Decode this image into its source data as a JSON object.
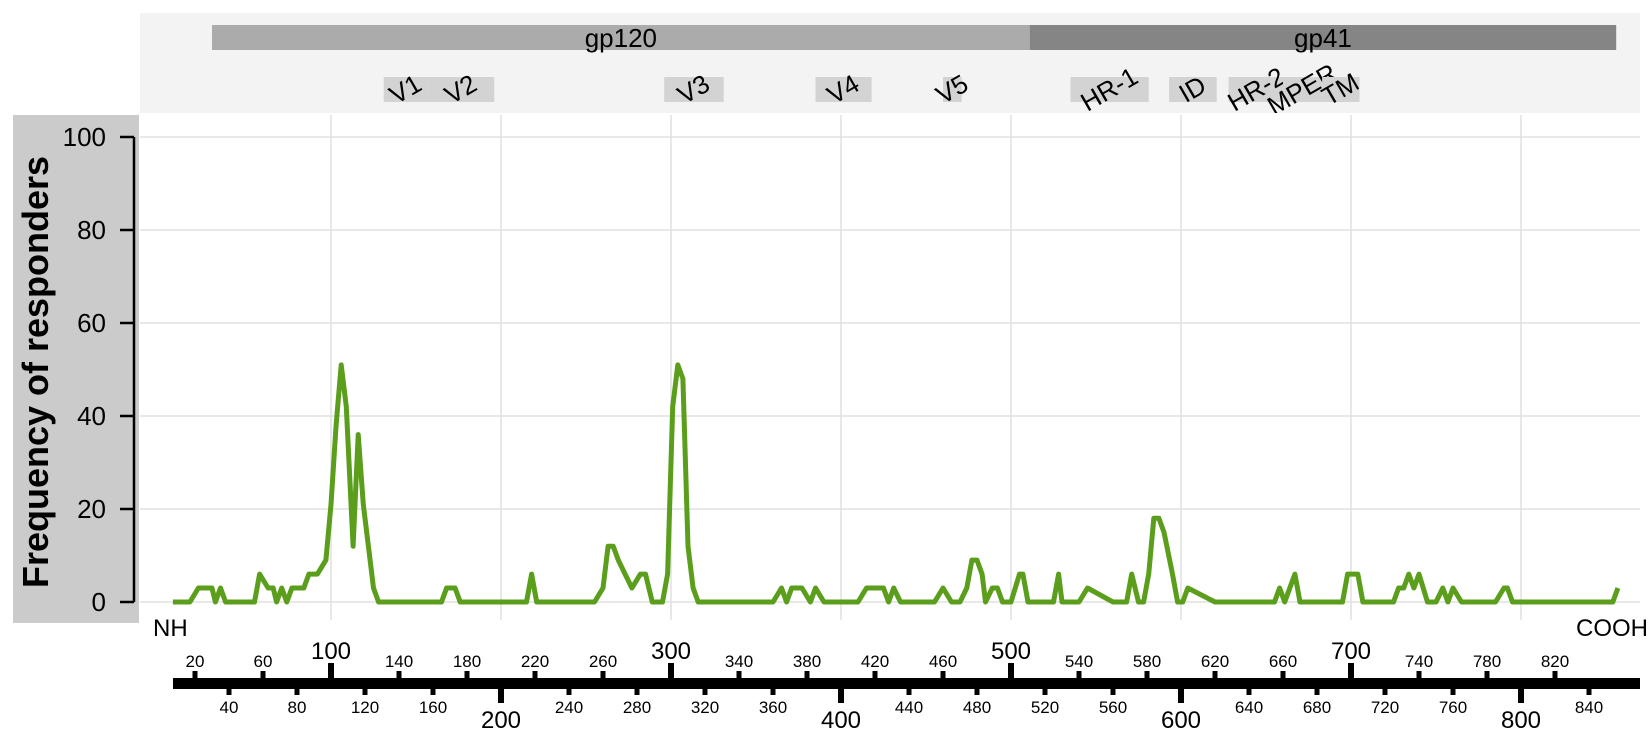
{
  "chart_data": {
    "type": "line",
    "ylabel": "Frequency of responders",
    "ylim": [
      0,
      100
    ],
    "xlim": [
      0,
      856
    ],
    "yticks": [
      0,
      20,
      40,
      60,
      80,
      100
    ],
    "grid": true,
    "x_grid": [
      100,
      200,
      300,
      400,
      500,
      600,
      700,
      800
    ],
    "left_end_label": "NH",
    "right_end_label": "COOH",
    "line_color": "#5a9e1c",
    "regions": [
      {
        "label": "gp120",
        "start": 30,
        "end": 511,
        "color": "#ababab"
      },
      {
        "label": "gp41",
        "start": 511,
        "end": 856,
        "color": "#858585"
      }
    ],
    "subregions": [
      {
        "label": "V1",
        "start": 131,
        "end": 157
      },
      {
        "label": "V2",
        "start": 157,
        "end": 196
      },
      {
        "label": "V3",
        "start": 296,
        "end": 331
      },
      {
        "label": "V4",
        "start": 385,
        "end": 418
      },
      {
        "label": "V5",
        "start": 460,
        "end": 471
      },
      {
        "label": "HR-1",
        "start": 535,
        "end": 581
      },
      {
        "label": "ID",
        "start": 593,
        "end": 621
      },
      {
        "label": "HR-2",
        "start": 628,
        "end": 661
      },
      {
        "label": "MPER",
        "start": 660,
        "end": 683
      },
      {
        "label": "TM",
        "start": 683,
        "end": 705
      }
    ],
    "major_ticks_top": [
      100,
      300,
      500,
      700
    ],
    "major_ticks_bottom": [
      200,
      400,
      600,
      800
    ],
    "minor_ticks_top": [
      20,
      60,
      140,
      180,
      220,
      260,
      340,
      380,
      420,
      460,
      540,
      580,
      620,
      660,
      740,
      780,
      820
    ],
    "minor_ticks_bottom": [
      40,
      80,
      120,
      160,
      240,
      280,
      320,
      360,
      440,
      480,
      520,
      560,
      640,
      680,
      720,
      760,
      840
    ],
    "series": [
      {
        "x": [
          7,
          17,
          22,
          27,
          30,
          32,
          35,
          38,
          45,
          50,
          55,
          58,
          63,
          66,
          68,
          71,
          74,
          77,
          80,
          84,
          87,
          92,
          97,
          100,
          103,
          106,
          109,
          113,
          116,
          119,
          122,
          125,
          128,
          131,
          145,
          165,
          168,
          170,
          173,
          176,
          200,
          215,
          218,
          221,
          224,
          228,
          240,
          255,
          260,
          263,
          266,
          269,
          273,
          277,
          282,
          285,
          289,
          292,
          295,
          298,
          301,
          304,
          307,
          310,
          313,
          316,
          319,
          322,
          360,
          365,
          368,
          371,
          374,
          377,
          382,
          385,
          390,
          400,
          410,
          415,
          420,
          425,
          428,
          431,
          435,
          440,
          455,
          460,
          465,
          470,
          474,
          477,
          480,
          483,
          485,
          489,
          492,
          495,
          500,
          505,
          507,
          510,
          513,
          518,
          525,
          528,
          530,
          535,
          540,
          545,
          560,
          565,
          568,
          571,
          575,
          578,
          581,
          584,
          587,
          590,
          595,
          598,
          601,
          604,
          620,
          630,
          650,
          655,
          658,
          661,
          664,
          667,
          670,
          690,
          695,
          698,
          701,
          704,
          707,
          720,
          725,
          728,
          731,
          734,
          737,
          740,
          745,
          750,
          754,
          757,
          760,
          765,
          780,
          785,
          790,
          792,
          795,
          850,
          854,
          857
        ],
        "y": [
          0,
          0,
          3,
          3,
          3,
          0,
          3,
          0,
          0,
          0,
          0,
          6,
          3,
          3,
          0,
          3,
          0,
          3,
          3,
          3,
          6,
          6,
          9,
          21,
          38,
          51,
          42,
          12,
          36,
          21,
          12,
          3,
          0,
          0,
          0,
          0,
          3,
          3,
          3,
          0,
          0,
          0,
          6,
          0,
          0,
          0,
          0,
          0,
          3,
          12,
          12,
          9,
          6,
          3,
          6,
          6,
          0,
          0,
          0,
          6,
          42,
          51,
          48,
          12,
          3,
          0,
          0,
          0,
          0,
          3,
          0,
          3,
          3,
          3,
          0,
          3,
          0,
          0,
          0,
          3,
          3,
          3,
          0,
          3,
          0,
          0,
          0,
          3,
          0,
          0,
          3,
          9,
          9,
          6,
          0,
          3,
          3,
          0,
          0,
          6,
          6,
          0,
          0,
          0,
          0,
          6,
          0,
          0,
          0,
          3,
          0,
          0,
          0,
          6,
          0,
          0,
          6,
          18,
          18,
          15,
          6,
          0,
          0,
          3,
          0,
          0,
          0,
          0,
          3,
          0,
          3,
          6,
          0,
          0,
          0,
          6,
          6,
          6,
          0,
          0,
          0,
          3,
          3,
          6,
          3,
          6,
          0,
          0,
          3,
          0,
          3,
          0,
          0,
          0,
          3,
          3,
          0,
          0,
          0,
          3
        ]
      }
    ]
  }
}
